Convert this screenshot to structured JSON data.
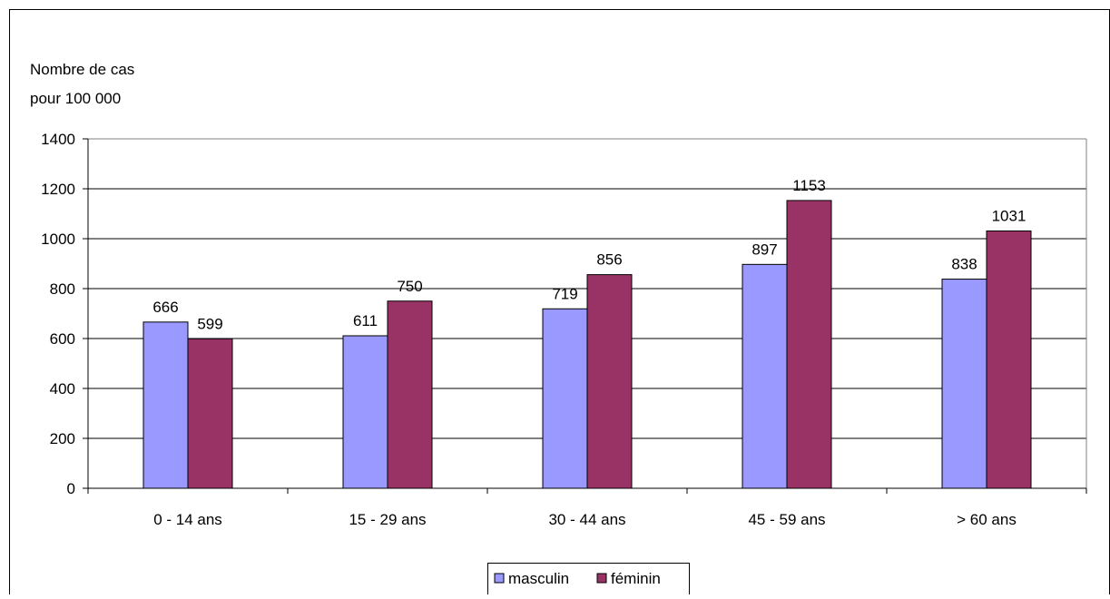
{
  "chart_data": {
    "type": "bar",
    "ylabel_lines": [
      "Nombre de cas",
      "pour 100 000"
    ],
    "categories": [
      "0 - 14 ans",
      "15 - 29 ans",
      "30 - 44 ans",
      "45 - 59 ans",
      "> 60 ans"
    ],
    "series": [
      {
        "name": "masculin",
        "color": "#9999ff",
        "values": [
          666,
          611,
          719,
          897,
          838
        ]
      },
      {
        "name": "féminin",
        "color": "#993366",
        "values": [
          599,
          750,
          856,
          1153,
          1031
        ]
      }
    ],
    "ylim": [
      0,
      1400
    ],
    "yticks": [
      0,
      200,
      400,
      600,
      800,
      1000,
      1200,
      1400
    ],
    "grid": true,
    "legend_position": "bottom",
    "data_labels": true
  }
}
